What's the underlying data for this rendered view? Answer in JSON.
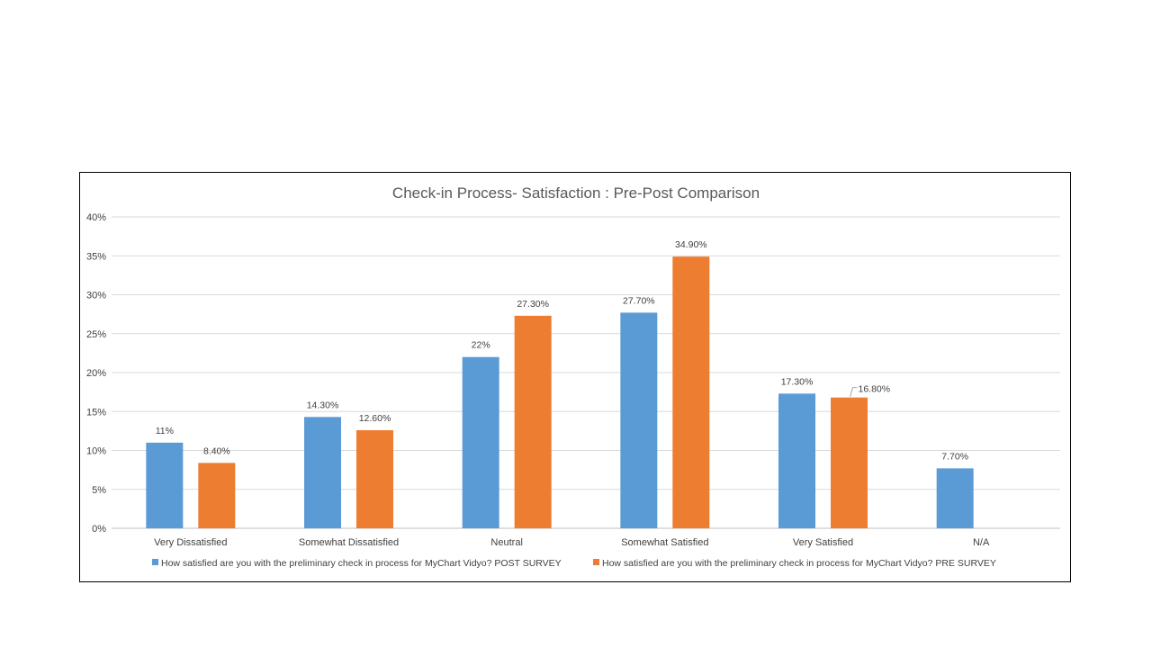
{
  "chart_data": {
    "type": "bar",
    "title": "Check-in Process- Satisfaction : Pre-Post Comparison",
    "categories": [
      "Very Dissatisfied",
      "Somewhat Dissatisfied",
      "Neutral",
      "Somewhat Satisfied",
      "Very Satisfied",
      "N/A"
    ],
    "series": [
      {
        "name": "How satisfied are you with the preliminary check in process for MyChart Vidyo? POST SURVEY",
        "color": "#5B9BD5",
        "values": [
          11,
          14.3,
          22,
          27.7,
          17.3,
          7.7
        ],
        "labels": [
          "11%",
          "14.30%",
          "22%",
          "27.70%",
          "17.30%",
          "7.70%"
        ]
      },
      {
        "name": "How satisfied are you with the preliminary check in process for MyChart Vidyo? PRE SURVEY",
        "color": "#ED7D31",
        "values": [
          8.4,
          12.6,
          27.3,
          34.9,
          16.8,
          null
        ],
        "labels": [
          "8.40%",
          "12.60%",
          "27.30%",
          "34.90%",
          "16.80%",
          null
        ]
      }
    ],
    "ylim": [
      0,
      40
    ],
    "yticks": [
      "0%",
      "5%",
      "10%",
      "15%",
      "20%",
      "25%",
      "30%",
      "35%",
      "40%"
    ],
    "xlabel": "",
    "ylabel": "",
    "grid": true,
    "legend_position": "bottom"
  }
}
